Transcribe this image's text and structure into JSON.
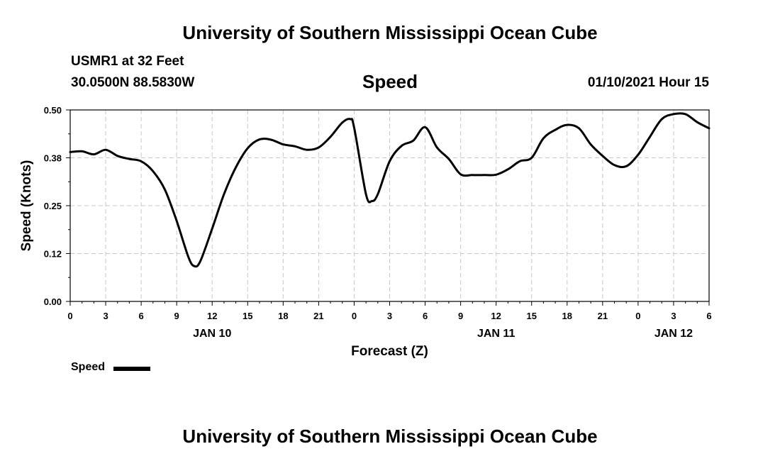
{
  "header": {
    "title": "University of Southern Mississippi Ocean Cube",
    "station": "USMR1 at 32 Feet",
    "coords": "30.0500N 88.5830W",
    "datetime": "01/10/2021 Hour 15"
  },
  "footer": {
    "title": "University of Southern Mississippi Ocean Cube"
  },
  "legend": {
    "label": "Speed"
  },
  "colors": {
    "line": "#000000",
    "grid": "#c8c8c8",
    "background": "#ffffff"
  },
  "chart_data": {
    "type": "line",
    "title": "Speed",
    "xlabel": "Forecast (Z)",
    "ylabel": "Speed (Knots)",
    "ylim": [
      0,
      0.5
    ],
    "yticks": [
      "0.00",
      "0.12",
      "0.25",
      "0.38",
      "0.50"
    ],
    "xlim": [
      "2021-01-10T00:00Z",
      "2021-01-12T06:00Z"
    ],
    "xticks": [
      {
        "label": "0",
        "x": "2021-01-10T00:00Z"
      },
      {
        "label": "3",
        "x": "2021-01-10T03:00Z"
      },
      {
        "label": "6",
        "x": "2021-01-10T06:00Z"
      },
      {
        "label": "9",
        "x": "2021-01-10T09:00Z"
      },
      {
        "label": "12",
        "x": "2021-01-10T12:00Z"
      },
      {
        "label": "15",
        "x": "2021-01-10T15:00Z"
      },
      {
        "label": "18",
        "x": "2021-01-10T18:00Z"
      },
      {
        "label": "21",
        "x": "2021-01-10T21:00Z"
      },
      {
        "label": "0",
        "x": "2021-01-11T00:00Z"
      },
      {
        "label": "3",
        "x": "2021-01-11T03:00Z"
      },
      {
        "label": "6",
        "x": "2021-01-11T06:00Z"
      },
      {
        "label": "9",
        "x": "2021-01-11T09:00Z"
      },
      {
        "label": "12",
        "x": "2021-01-11T12:00Z"
      },
      {
        "label": "15",
        "x": "2021-01-11T15:00Z"
      },
      {
        "label": "18",
        "x": "2021-01-11T18:00Z"
      },
      {
        "label": "21",
        "x": "2021-01-11T21:00Z"
      },
      {
        "label": "0",
        "x": "2021-01-12T00:00Z"
      },
      {
        "label": "3",
        "x": "2021-01-12T03:00Z"
      },
      {
        "label": "6",
        "x": "2021-01-12T06:00Z"
      }
    ],
    "date_labels": [
      {
        "label": "JAN 10",
        "x": "2021-01-10T12:00Z"
      },
      {
        "label": "JAN 11",
        "x": "2021-01-11T12:00Z"
      },
      {
        "label": "JAN 12",
        "x": "2021-01-12T03:00Z"
      }
    ],
    "grid": true,
    "legend_position": "bottom-left",
    "series": [
      {
        "name": "Speed",
        "x": [
          "2021-01-10T00:00Z",
          "2021-01-10T01:00Z",
          "2021-01-10T02:00Z",
          "2021-01-10T03:00Z",
          "2021-01-10T04:00Z",
          "2021-01-10T05:00Z",
          "2021-01-10T06:00Z",
          "2021-01-10T07:00Z",
          "2021-01-10T08:00Z",
          "2021-01-10T09:00Z",
          "2021-01-10T10:00Z",
          "2021-01-10T10:30Z",
          "2021-01-10T11:00Z",
          "2021-01-10T12:00Z",
          "2021-01-10T13:00Z",
          "2021-01-10T14:00Z",
          "2021-01-10T15:00Z",
          "2021-01-10T16:00Z",
          "2021-01-10T17:00Z",
          "2021-01-10T18:00Z",
          "2021-01-10T19:00Z",
          "2021-01-10T20:00Z",
          "2021-01-10T21:00Z",
          "2021-01-10T22:00Z",
          "2021-01-10T23:00Z",
          "2021-01-10T23:40Z",
          "2021-01-11T00:00Z",
          "2021-01-11T01:00Z",
          "2021-01-11T01:30Z",
          "2021-01-11T02:00Z",
          "2021-01-11T03:00Z",
          "2021-01-11T04:00Z",
          "2021-01-11T05:00Z",
          "2021-01-11T06:00Z",
          "2021-01-11T07:00Z",
          "2021-01-11T08:00Z",
          "2021-01-11T09:00Z",
          "2021-01-11T10:00Z",
          "2021-01-11T11:00Z",
          "2021-01-11T12:00Z",
          "2021-01-11T13:00Z",
          "2021-01-11T14:00Z",
          "2021-01-11T15:00Z",
          "2021-01-11T16:00Z",
          "2021-01-11T17:00Z",
          "2021-01-11T18:00Z",
          "2021-01-11T19:00Z",
          "2021-01-11T20:00Z",
          "2021-01-11T21:00Z",
          "2021-01-11T22:00Z",
          "2021-01-11T23:00Z",
          "2021-01-12T00:00Z",
          "2021-01-12T01:00Z",
          "2021-01-12T02:00Z",
          "2021-01-12T03:00Z",
          "2021-01-12T04:00Z",
          "2021-01-12T05:00Z",
          "2021-01-12T06:00Z"
        ],
        "values": [
          0.39,
          0.392,
          0.384,
          0.396,
          0.38,
          0.372,
          0.366,
          0.34,
          0.292,
          0.21,
          0.115,
          0.092,
          0.105,
          0.19,
          0.28,
          0.35,
          0.4,
          0.423,
          0.422,
          0.41,
          0.405,
          0.396,
          0.402,
          0.43,
          0.467,
          0.476,
          0.454,
          0.28,
          0.262,
          0.28,
          0.366,
          0.406,
          0.42,
          0.455,
          0.402,
          0.372,
          0.332,
          0.33,
          0.33,
          0.331,
          0.345,
          0.366,
          0.375,
          0.426,
          0.448,
          0.461,
          0.452,
          0.41,
          0.38,
          0.356,
          0.353,
          0.383,
          0.43,
          0.476,
          0.489,
          0.489,
          0.468,
          0.452
        ]
      }
    ]
  }
}
